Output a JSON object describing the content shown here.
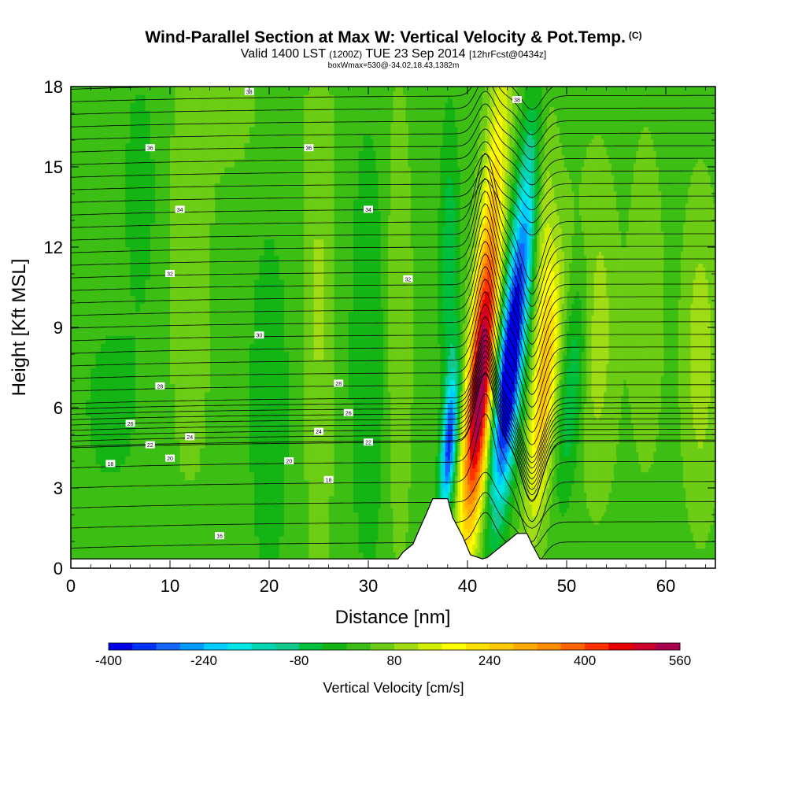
{
  "header": {
    "title": "Wind-Parallel Section at Max W: Vertical Velocity & Pot.Temp.",
    "title_unit": "(C)",
    "valid_prefix": "Valid 1400 LST",
    "valid_utc": "(1200Z)",
    "valid_date": "TUE 23 Sep 2014",
    "forecast": "[12hrFcst@0434z]",
    "box_info": "boxWmax=530@-34.02,18.43,1382m"
  },
  "chart_data": {
    "type": "heatmap",
    "xlabel": "Distance [nm]",
    "ylabel": "Height [Kft MSL]",
    "xlim": [
      0,
      65
    ],
    "ylim": [
      0,
      18
    ],
    "x_ticks": [
      0,
      10,
      20,
      30,
      40,
      50,
      60
    ],
    "y_ticks": [
      0,
      3,
      6,
      9,
      12,
      15,
      18
    ],
    "colorbar": {
      "label": "Vertical Velocity [cm/s]",
      "tick_values": [
        -400,
        -240,
        -80,
        80,
        240,
        400,
        560
      ],
      "levels": [
        -400,
        -360,
        -320,
        -280,
        -240,
        -200,
        -160,
        -120,
        -80,
        -40,
        0,
        40,
        80,
        120,
        160,
        200,
        240,
        280,
        320,
        360,
        400,
        440,
        480,
        520,
        560
      ],
      "colors": [
        "#0000e6",
        "#0033f5",
        "#1466ff",
        "#0099ff",
        "#00ccff",
        "#00e6e6",
        "#00d6b3",
        "#14c88c",
        "#00bf3c",
        "#14b414",
        "#3cbe14",
        "#6ccd14",
        "#a0dc14",
        "#d4ee00",
        "#ffff00",
        "#ffe100",
        "#ffc800",
        "#ffaa00",
        "#ff8c00",
        "#ff6400",
        "#ff3200",
        "#e60000",
        "#cc0028",
        "#aa0050"
      ]
    },
    "velocity_features": [
      {
        "x_nm": 38.0,
        "height_kft": 4.8,
        "w_cms": -320
      },
      {
        "x_nm": 41.0,
        "height_kft": 6.8,
        "w_cms": 530
      },
      {
        "x_nm": 43.5,
        "height_kft": 7.0,
        "w_cms": -400
      },
      {
        "x_nm": 47.5,
        "height_kft": 6.5,
        "w_cms": 200
      }
    ],
    "isentrope_labels": [
      {
        "value": "16",
        "x_nm": 15,
        "height_kft": 1.2
      },
      {
        "value": "18",
        "x_nm": 4,
        "height_kft": 3.9
      },
      {
        "value": "18",
        "x_nm": 26,
        "height_kft": 3.3
      },
      {
        "value": "20",
        "x_nm": 10,
        "height_kft": 4.1
      },
      {
        "value": "20",
        "x_nm": 22,
        "height_kft": 4.0
      },
      {
        "value": "22",
        "x_nm": 8,
        "height_kft": 4.6
      },
      {
        "value": "22",
        "x_nm": 30,
        "height_kft": 4.7
      },
      {
        "value": "24",
        "x_nm": 12,
        "height_kft": 4.9
      },
      {
        "value": "24",
        "x_nm": 25,
        "height_kft": 5.1
      },
      {
        "value": "26",
        "x_nm": 6,
        "height_kft": 5.4
      },
      {
        "value": "26",
        "x_nm": 28,
        "height_kft": 5.8
      },
      {
        "value": "28",
        "x_nm": 9,
        "height_kft": 6.8
      },
      {
        "value": "28",
        "x_nm": 27,
        "height_kft": 6.9
      },
      {
        "value": "30",
        "x_nm": 19,
        "height_kft": 8.7
      },
      {
        "value": "32",
        "x_nm": 10,
        "height_kft": 11.0
      },
      {
        "value": "32",
        "x_nm": 34,
        "height_kft": 10.8
      },
      {
        "value": "34",
        "x_nm": 11,
        "height_kft": 13.4
      },
      {
        "value": "34",
        "x_nm": 30,
        "height_kft": 13.4
      },
      {
        "value": "36",
        "x_nm": 8,
        "height_kft": 15.7
      },
      {
        "value": "36",
        "x_nm": 24,
        "height_kft": 15.7
      },
      {
        "value": "38",
        "x_nm": 18,
        "height_kft": 17.8
      },
      {
        "value": "38",
        "x_nm": 45,
        "height_kft": 17.5
      }
    ],
    "terrain_nm_kft": [
      [
        0,
        0.35
      ],
      [
        33,
        0.35
      ],
      [
        33.5,
        0.6
      ],
      [
        34.5,
        0.9
      ],
      [
        35.2,
        1.5
      ],
      [
        35.8,
        2.0
      ],
      [
        36.5,
        2.6
      ],
      [
        38.0,
        2.6
      ],
      [
        38.5,
        1.9
      ],
      [
        39.5,
        1.2
      ],
      [
        40.3,
        0.5
      ],
      [
        41.5,
        0.35
      ],
      [
        42.0,
        0.4
      ],
      [
        43.0,
        0.7
      ],
      [
        44.0,
        1.0
      ],
      [
        45.0,
        1.3
      ],
      [
        46.0,
        1.3
      ],
      [
        46.5,
        0.9
      ],
      [
        47.3,
        0.35
      ],
      [
        65,
        0.35
      ]
    ]
  }
}
